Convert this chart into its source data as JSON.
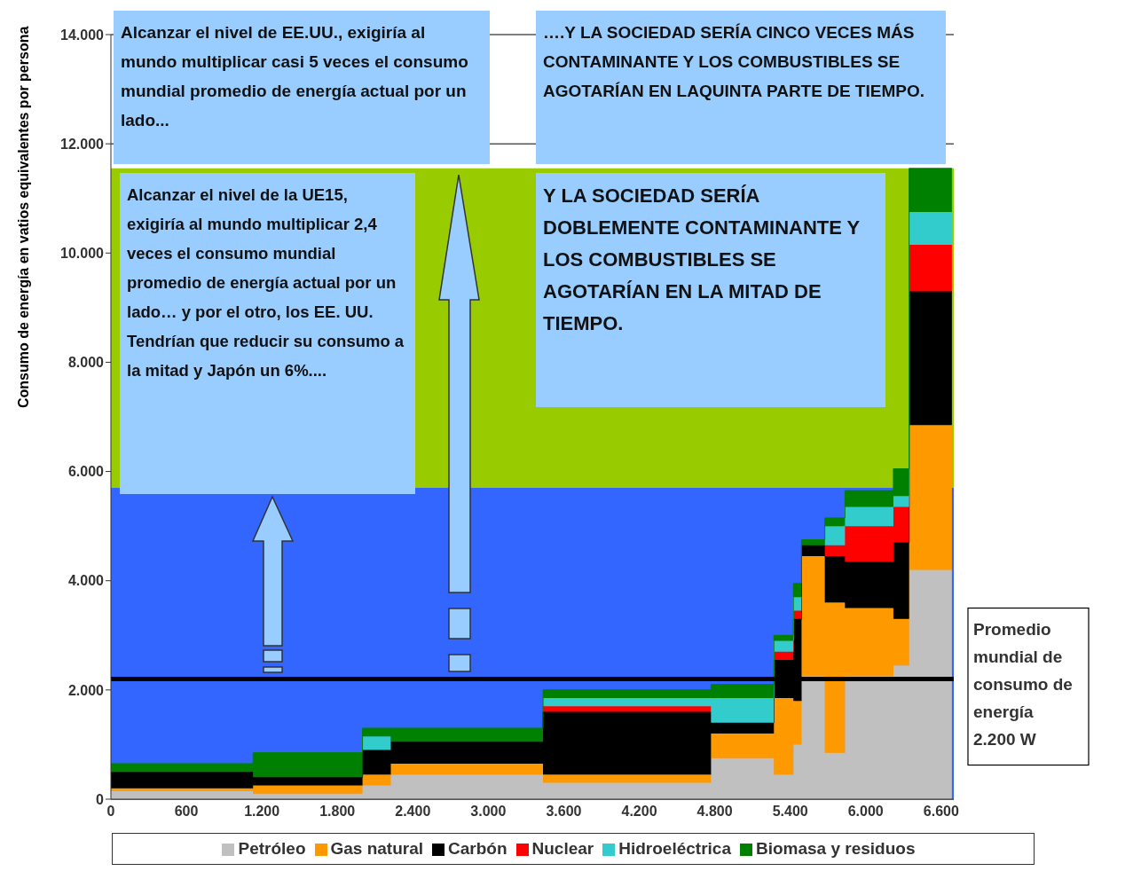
{
  "chart_data": {
    "type": "area",
    "stacked": true,
    "ylabel": "Consumo de energía en vatios equivalentes por persona",
    "x": [
      0,
      1130,
      1130,
      2000,
      2000,
      2225,
      2225,
      3435,
      3435,
      4770,
      4770,
      5270,
      5270,
      5425,
      5425,
      5490,
      5490,
      5675,
      5675,
      5835,
      5835,
      6220,
      6220,
      6345,
      6345,
      6685
    ],
    "series": [
      {
        "name": "Petróleo",
        "color": "#c0c0c0",
        "values": [
          150,
          150,
          100,
          100,
          250,
          250,
          450,
          450,
          300,
          300,
          750,
          750,
          450,
          450,
          1000,
          1000,
          2250,
          2250,
          850,
          850,
          2250,
          2250,
          2450,
          2450,
          4200,
          4200
        ]
      },
      {
        "name": "Gas natural",
        "color": "#ff9900",
        "values": [
          50,
          50,
          150,
          150,
          200,
          200,
          200,
          200,
          150,
          150,
          450,
          450,
          1400,
          1400,
          800,
          800,
          2200,
          2200,
          2750,
          2750,
          1250,
          1250,
          850,
          850,
          2650,
          2650
        ]
      },
      {
        "name": "Carbón",
        "color": "#000000",
        "values": [
          300,
          300,
          150,
          150,
          450,
          450,
          400,
          400,
          1150,
          1150,
          200,
          200,
          700,
          700,
          1500,
          1500,
          200,
          200,
          850,
          850,
          850,
          850,
          1400,
          1400,
          2450,
          2450
        ]
      },
      {
        "name": "Nuclear",
        "color": "#ff0000",
        "values": [
          null,
          null,
          null,
          null,
          null,
          null,
          null,
          null,
          100,
          100,
          null,
          null,
          150,
          150,
          150,
          150,
          null,
          null,
          200,
          200,
          650,
          650,
          650,
          650,
          850,
          850
        ]
      },
      {
        "name": "Hidroeléctrica",
        "color": "#33cccc",
        "values": [
          null,
          null,
          null,
          null,
          250,
          250,
          null,
          null,
          150,
          150,
          450,
          450,
          200,
          200,
          250,
          250,
          null,
          null,
          350,
          350,
          350,
          350,
          200,
          200,
          600,
          600
        ]
      },
      {
        "name": "Biomasa y residuos",
        "color": "#008000",
        "values": [
          150,
          150,
          450,
          450,
          150,
          150,
          250,
          250,
          150,
          150,
          250,
          250,
          100,
          100,
          250,
          250,
          100,
          100,
          150,
          150,
          300,
          300,
          500,
          500,
          800,
          800
        ]
      }
    ],
    "xlim": [
      0,
      6700
    ],
    "xticks": [
      0,
      600,
      {
        "value": 1200,
        "label": "1.200"
      },
      {
        "value": 1800,
        "label": "1.800"
      },
      {
        "value": 2400,
        "label": "2.400"
      },
      {
        "value": 3000,
        "label": "3.000"
      },
      {
        "value": 3600,
        "label": "3.600"
      },
      {
        "value": 4200,
        "label": "4.200"
      },
      {
        "value": 4800,
        "label": "4.800"
      },
      {
        "value": 5400,
        "label": "5.400"
      },
      {
        "value": 6000,
        "label": "6.000"
      },
      {
        "value": 6600,
        "label": "6.600"
      }
    ],
    "ylim": [
      0,
      14000
    ],
    "yticks": [
      0,
      {
        "value": 2000,
        "label": "2.000"
      },
      {
        "value": 4000,
        "label": "4.000"
      },
      {
        "value": 6000,
        "label": "6.000"
      },
      {
        "value": 8000,
        "label": "8.000"
      },
      {
        "value": 10000,
        "label": "10.000"
      },
      {
        "value": 12000,
        "label": "12.000"
      },
      {
        "value": 14000,
        "label": "14.000"
      }
    ],
    "grid": "y",
    "legend": "bottom",
    "bands": [
      {
        "axis": "y",
        "from": 0,
        "to": 5700,
        "color": "#3366ff"
      },
      {
        "axis": "y",
        "from": 5700,
        "to": 11550,
        "color": "#99cc00"
      }
    ],
    "ref_lines": [
      {
        "axis": "y",
        "value": 2200,
        "label": "Promedio mundial de consumo de energía 2.200 W",
        "color": "#000000"
      }
    ],
    "annotations": [
      "Alcanzar el nivel de EE.UU., exigiría al mundo multiplicar casi 5 veces el consumo mundial promedio de energía actual por un lado...",
      "….Y LA SOCIEDAD SERÍA CINCO VECES MÁS CONTAMINANTE Y LOS COMBUSTIBLES SE AGOTARÍAN EN LAQUINTA PARTE DE TIEMPO.",
      "Alcanzar el nivel de la UE15, exigiría al mundo multiplicar 2,4 veces el consumo mundial promedio de energía actual por un lado… y por el otro, los EE. UU. Tendrían que reducir su consumo a la mitad y Japón un 6%....",
      "Y LA SOCIEDAD SERÍA DOBLEMENTE CONTAMINANTE Y LOS COMBUSTIBLES SE AGOTARÍAN EN LA MITAD DE TIEMPO."
    ]
  }
}
